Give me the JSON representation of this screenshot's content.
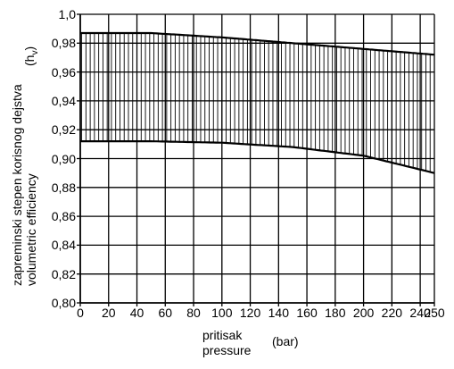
{
  "chart_data": {
    "type": "area",
    "ylabel_lines": [
      "zapreminski stepen korisnog dejstva",
      "volumetric efficiency"
    ],
    "ylabel_symbol": "(h",
    "ylabel_symbol_sub": "v",
    "ylabel_symbol_close": ")",
    "xlabel_lines": [
      "pritisak",
      "pressure"
    ],
    "xlabel_unit": "(bar)",
    "xlim": [
      0,
      250
    ],
    "ylim": [
      0.8,
      1.0
    ],
    "x_ticks": [
      0,
      20,
      40,
      60,
      80,
      100,
      120,
      140,
      160,
      180,
      200,
      220,
      240,
      250
    ],
    "x_tick_labels": [
      "0",
      "20",
      "40",
      "60",
      "80",
      "100",
      "120",
      "140",
      "160",
      "180",
      "200",
      "220",
      "240",
      "250"
    ],
    "y_ticks": [
      0.8,
      0.82,
      0.84,
      0.86,
      0.88,
      0.9,
      0.92,
      0.94,
      0.96,
      0.98,
      1.0
    ],
    "y_tick_labels": [
      "0,80",
      "0,82",
      "0,84",
      "0,86",
      "0,88",
      "0,90",
      "0,92",
      "0,94",
      "0,96",
      "0,98",
      "1,0"
    ],
    "grid": true,
    "series": [
      {
        "x": [
          0,
          50,
          100,
          150,
          200,
          250
        ],
        "upper": [
          0.987,
          0.987,
          0.984,
          0.98,
          0.976,
          0.972
        ],
        "lower": [
          0.912,
          0.912,
          0.911,
          0.908,
          0.902,
          0.89
        ]
      }
    ]
  }
}
